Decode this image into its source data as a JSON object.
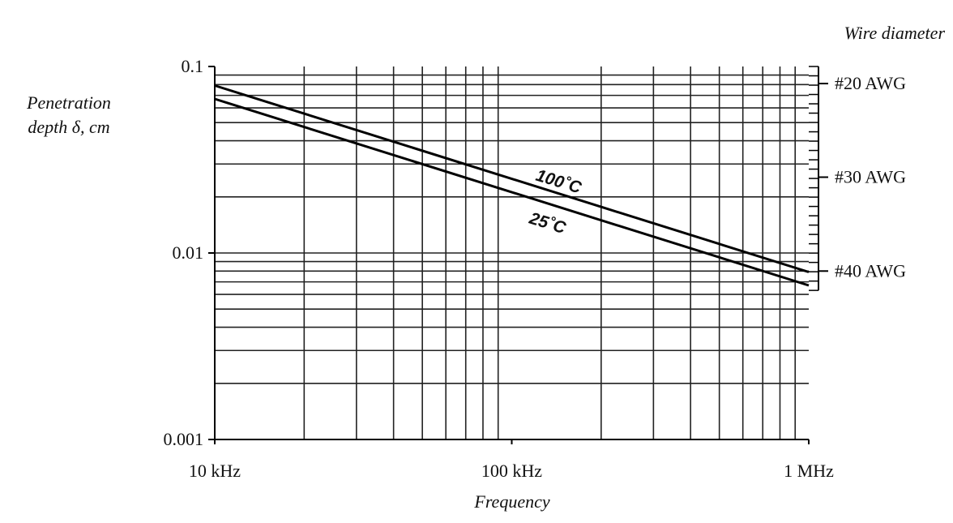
{
  "chart_data": {
    "type": "line",
    "title": "",
    "xlabel": "Frequency",
    "ylabel_lines": [
      "Penetration",
      "depth  δ, cm"
    ],
    "x_scale": "log",
    "y_scale": "log",
    "xlim": [
      10000,
      1000000
    ],
    "ylim": [
      0.001,
      0.1
    ],
    "grid": true,
    "x_ticks": [
      {
        "value": 10000,
        "label": "10 kHz"
      },
      {
        "value": 100000,
        "label": "100 kHz"
      },
      {
        "value": 1000000,
        "label": "1 MHz"
      }
    ],
    "y_ticks": [
      {
        "value": 0.1,
        "label": "0.1"
      },
      {
        "value": 0.01,
        "label": "0.01"
      },
      {
        "value": 0.001,
        "label": "0.001"
      }
    ],
    "series": [
      {
        "name": "100˚C",
        "x": [
          10000,
          1000000
        ],
        "y": [
          0.079,
          0.0079
        ]
      },
      {
        "name": "25˚C",
        "x": [
          10000,
          1000000
        ],
        "y": [
          0.067,
          0.0067
        ]
      }
    ],
    "right_axis": {
      "title": "Wire diameter",
      "labels": [
        {
          "label": "#20 AWG",
          "value": 0.081
        },
        {
          "label": "#30 AWG",
          "value": 0.0255
        },
        {
          "label": "#40 AWG",
          "value": 0.008
        }
      ]
    }
  }
}
